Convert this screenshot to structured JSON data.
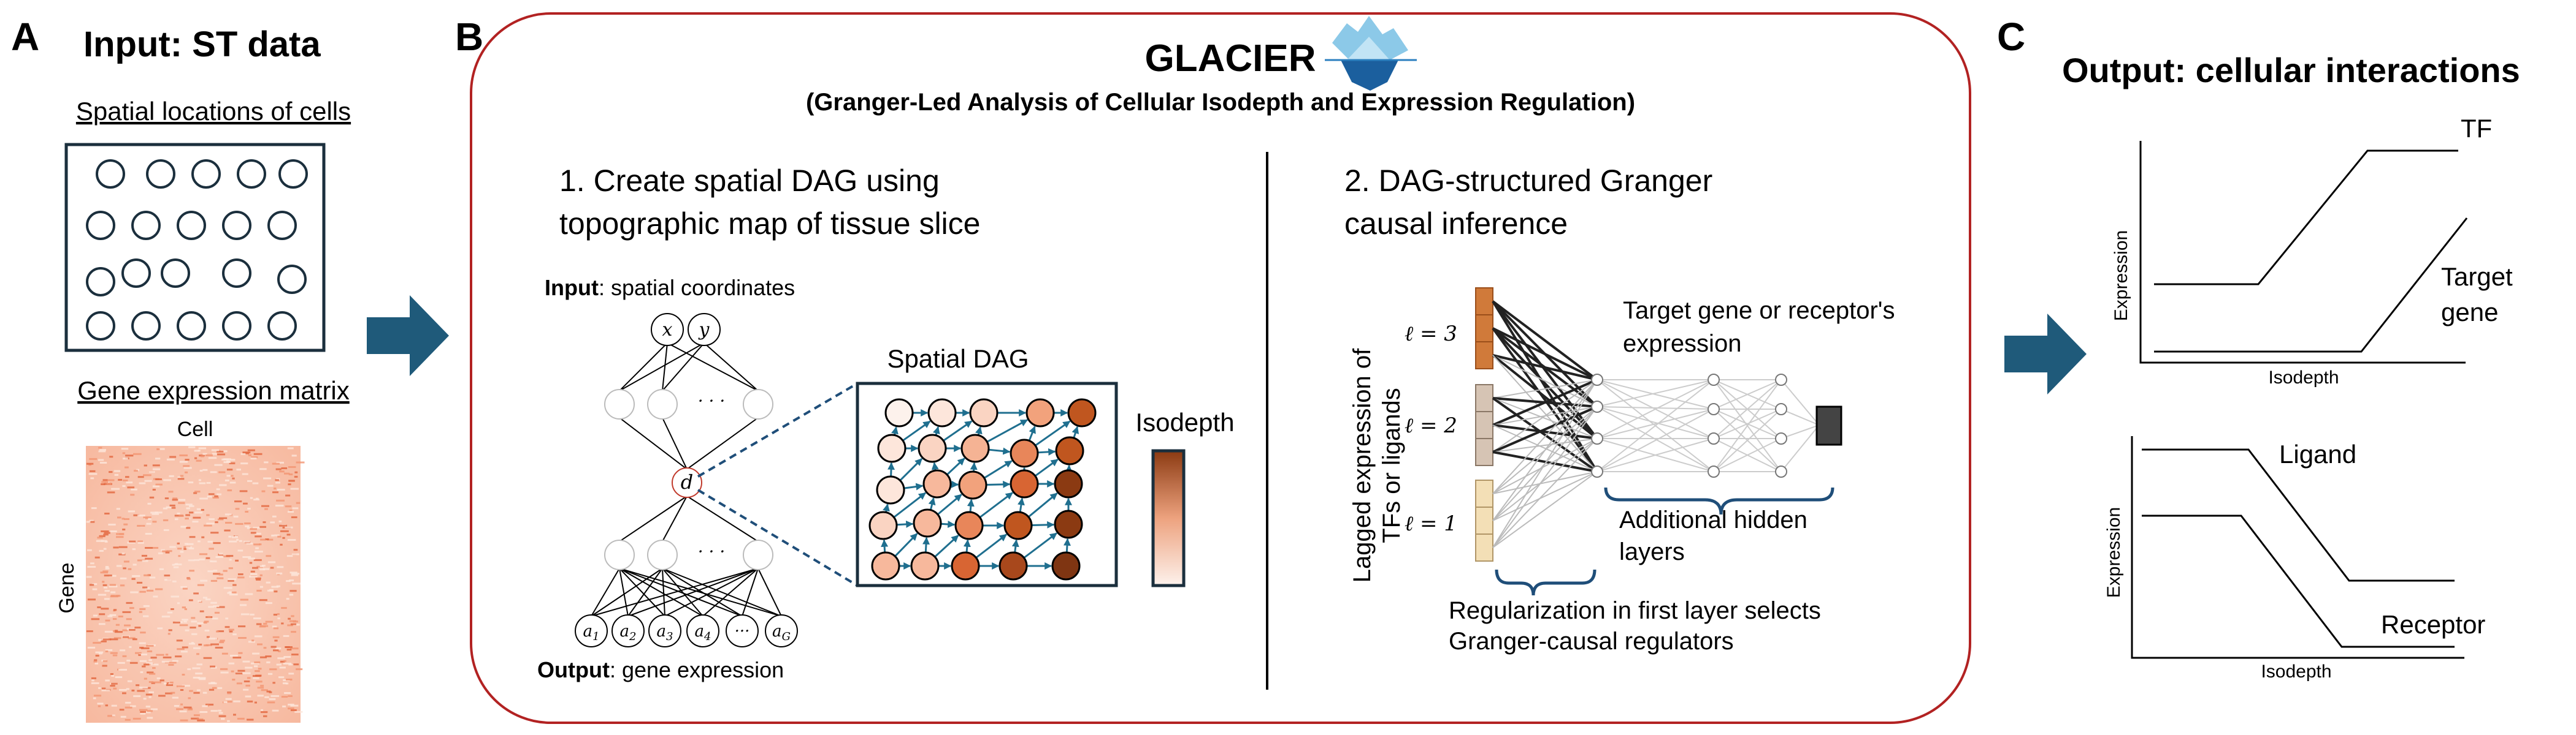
{
  "panelA": {
    "letter": "A",
    "title": "Input: ST data",
    "spatial_label": "Spatial locations of cells",
    "matrix_label": "Gene expression matrix",
    "cell_label": "Cell",
    "gene_label": "Gene"
  },
  "panelB": {
    "letter": "B",
    "name": "GLACIER",
    "subtitle": "(Granger-Led Analysis of Cellular Isodepth and Expression Regulation)",
    "step1_line1": "1. Create spatial DAG using",
    "step1_line2": "topographic map of tissue slice",
    "input_bold": "Input",
    "input_rest": ": spatial coordinates",
    "output_bold": "Output",
    "output_rest": ": gene expression",
    "node_x": "x",
    "node_y": "y",
    "node_d": "d",
    "dots": "· · ·",
    "gene_nodes": [
      "a1",
      "a2",
      "a3",
      "a4",
      "···",
      "aG"
    ],
    "spatial_dag_title": "Spatial DAG",
    "isodepth_label": "Isodepth",
    "step2_line1": "2. DAG-structured Granger",
    "step2_line2": "causal inference",
    "lagged_line1": "Lagged expression of",
    "lagged_line2": "TFs or ligands",
    "lag_labels": [
      "ℓ = 3",
      "ℓ = 2",
      "ℓ = 1"
    ],
    "target_line1": "Target gene or receptor's",
    "target_line2": "expression",
    "hidden_line1": "Additional hidden",
    "hidden_line2": "layers",
    "reg_line1": "Regularization in first layer selects",
    "reg_line2": "Granger-causal regulators"
  },
  "panelC": {
    "letter": "C",
    "title": "Output: cellular interactions",
    "plot1": {
      "ylabel": "Expression",
      "xlabel": "Isodepth",
      "label_tf": "TF",
      "label_target_1": "Target",
      "label_target_2": "gene"
    },
    "plot2": {
      "ylabel": "Expression",
      "xlabel": "Isodepth",
      "label_ligand": "Ligand",
      "label_receptor": "Receptor"
    }
  },
  "colors": {
    "arrow": "#1f5a7a",
    "frame": "#b22222",
    "dag_edge": "#1f6f8f",
    "heat": "#e8704a",
    "iso_dark": "#8b3a12",
    "iso_light": "#fdf2ec"
  }
}
